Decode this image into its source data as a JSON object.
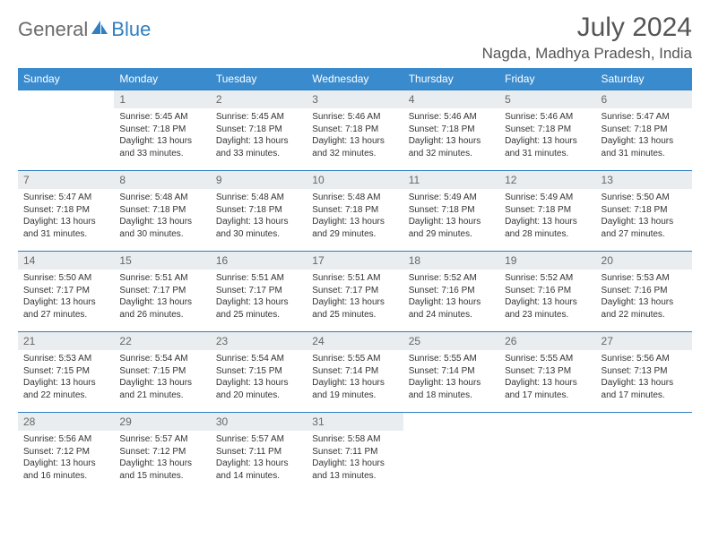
{
  "logo": {
    "gen": "General",
    "blue": "Blue"
  },
  "colors": {
    "headerBg": "#3a8bcd",
    "border": "#2f7fc2",
    "dayBg": "#e9edef"
  },
  "title": "July 2024",
  "location": "Nagda, Madhya Pradesh, India",
  "weekdays": [
    "Sunday",
    "Monday",
    "Tuesday",
    "Wednesday",
    "Thursday",
    "Friday",
    "Saturday"
  ],
  "days": [
    {
      "n": "1",
      "sr": "5:45 AM",
      "ss": "7:18 PM",
      "dl": "13 hours and 33 minutes."
    },
    {
      "n": "2",
      "sr": "5:45 AM",
      "ss": "7:18 PM",
      "dl": "13 hours and 33 minutes."
    },
    {
      "n": "3",
      "sr": "5:46 AM",
      "ss": "7:18 PM",
      "dl": "13 hours and 32 minutes."
    },
    {
      "n": "4",
      "sr": "5:46 AM",
      "ss": "7:18 PM",
      "dl": "13 hours and 32 minutes."
    },
    {
      "n": "5",
      "sr": "5:46 AM",
      "ss": "7:18 PM",
      "dl": "13 hours and 31 minutes."
    },
    {
      "n": "6",
      "sr": "5:47 AM",
      "ss": "7:18 PM",
      "dl": "13 hours and 31 minutes."
    },
    {
      "n": "7",
      "sr": "5:47 AM",
      "ss": "7:18 PM",
      "dl": "13 hours and 31 minutes."
    },
    {
      "n": "8",
      "sr": "5:48 AM",
      "ss": "7:18 PM",
      "dl": "13 hours and 30 minutes."
    },
    {
      "n": "9",
      "sr": "5:48 AM",
      "ss": "7:18 PM",
      "dl": "13 hours and 30 minutes."
    },
    {
      "n": "10",
      "sr": "5:48 AM",
      "ss": "7:18 PM",
      "dl": "13 hours and 29 minutes."
    },
    {
      "n": "11",
      "sr": "5:49 AM",
      "ss": "7:18 PM",
      "dl": "13 hours and 29 minutes."
    },
    {
      "n": "12",
      "sr": "5:49 AM",
      "ss": "7:18 PM",
      "dl": "13 hours and 28 minutes."
    },
    {
      "n": "13",
      "sr": "5:50 AM",
      "ss": "7:18 PM",
      "dl": "13 hours and 27 minutes."
    },
    {
      "n": "14",
      "sr": "5:50 AM",
      "ss": "7:17 PM",
      "dl": "13 hours and 27 minutes."
    },
    {
      "n": "15",
      "sr": "5:51 AM",
      "ss": "7:17 PM",
      "dl": "13 hours and 26 minutes."
    },
    {
      "n": "16",
      "sr": "5:51 AM",
      "ss": "7:17 PM",
      "dl": "13 hours and 25 minutes."
    },
    {
      "n": "17",
      "sr": "5:51 AM",
      "ss": "7:17 PM",
      "dl": "13 hours and 25 minutes."
    },
    {
      "n": "18",
      "sr": "5:52 AM",
      "ss": "7:16 PM",
      "dl": "13 hours and 24 minutes."
    },
    {
      "n": "19",
      "sr": "5:52 AM",
      "ss": "7:16 PM",
      "dl": "13 hours and 23 minutes."
    },
    {
      "n": "20",
      "sr": "5:53 AM",
      "ss": "7:16 PM",
      "dl": "13 hours and 22 minutes."
    },
    {
      "n": "21",
      "sr": "5:53 AM",
      "ss": "7:15 PM",
      "dl": "13 hours and 22 minutes."
    },
    {
      "n": "22",
      "sr": "5:54 AM",
      "ss": "7:15 PM",
      "dl": "13 hours and 21 minutes."
    },
    {
      "n": "23",
      "sr": "5:54 AM",
      "ss": "7:15 PM",
      "dl": "13 hours and 20 minutes."
    },
    {
      "n": "24",
      "sr": "5:55 AM",
      "ss": "7:14 PM",
      "dl": "13 hours and 19 minutes."
    },
    {
      "n": "25",
      "sr": "5:55 AM",
      "ss": "7:14 PM",
      "dl": "13 hours and 18 minutes."
    },
    {
      "n": "26",
      "sr": "5:55 AM",
      "ss": "7:13 PM",
      "dl": "13 hours and 17 minutes."
    },
    {
      "n": "27",
      "sr": "5:56 AM",
      "ss": "7:13 PM",
      "dl": "13 hours and 17 minutes."
    },
    {
      "n": "28",
      "sr": "5:56 AM",
      "ss": "7:12 PM",
      "dl": "13 hours and 16 minutes."
    },
    {
      "n": "29",
      "sr": "5:57 AM",
      "ss": "7:12 PM",
      "dl": "13 hours and 15 minutes."
    },
    {
      "n": "30",
      "sr": "5:57 AM",
      "ss": "7:11 PM",
      "dl": "13 hours and 14 minutes."
    },
    {
      "n": "31",
      "sr": "5:58 AM",
      "ss": "7:11 PM",
      "dl": "13 hours and 13 minutes."
    }
  ],
  "labels": {
    "sunrise": "Sunrise:",
    "sunset": "Sunset:",
    "daylight": "Daylight:"
  },
  "startWeekday": 1
}
